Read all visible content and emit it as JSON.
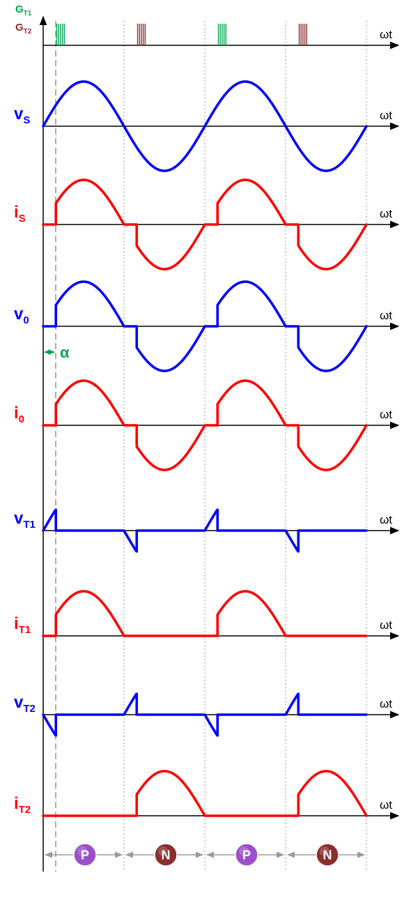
{
  "colors": {
    "blue": "#0000ff",
    "red": "#ff0000",
    "green": "#00a650",
    "maroon": "#8b2e2e",
    "axis": "#000000",
    "grid": "#9a9a9a",
    "badge_p": "#9b4fc9",
    "badge_n": "#8b2e2e"
  },
  "axis_label": "ωt",
  "alpha_label": "α",
  "gate_labels": [
    {
      "main": "G",
      "sub": "T1",
      "color": "#00a650"
    },
    {
      "main": "G",
      "sub": "T2",
      "color": "#8b2e2e"
    }
  ],
  "waveforms": [
    {
      "main": "v",
      "sub": "S",
      "color": "#0000ff",
      "kind": "vs"
    },
    {
      "main": "i",
      "sub": "S",
      "color": "#ff0000",
      "kind": "io"
    },
    {
      "main": "v",
      "sub": "0",
      "color": "#0000ff",
      "kind": "io"
    },
    {
      "main": "i",
      "sub": "0",
      "color": "#ff0000",
      "kind": "io"
    },
    {
      "main": "v",
      "sub": "T1",
      "color": "#0000ff",
      "kind": "vt1"
    },
    {
      "main": "i",
      "sub": "T1",
      "color": "#ff0000",
      "kind": "it1"
    },
    {
      "main": "v",
      "sub": "T2",
      "color": "#0000ff",
      "kind": "vt2"
    },
    {
      "main": "i",
      "sub": "T2",
      "color": "#ff0000",
      "kind": "it2"
    }
  ],
  "regions": [
    {
      "label": "P",
      "color": "#9b4fc9"
    },
    {
      "label": "N",
      "color": "#8b2e2e"
    },
    {
      "label": "P",
      "color": "#9b4fc9"
    },
    {
      "label": "N",
      "color": "#8b2e2e"
    }
  ]
}
